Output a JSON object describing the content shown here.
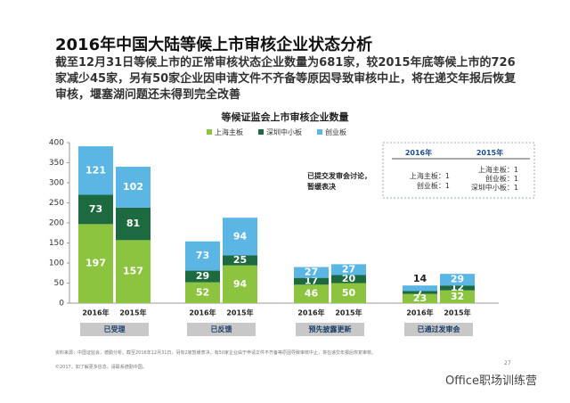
{
  "title": "2016年中国大陆等候上市审核企业状态分析",
  "subtitle": "截至12月31日等候上市的正常审核状态企业数量为681家，较2015年底等候上市的726家减少45家，另有50家企业因申请文件不齐备等原因导致审核中止，将在递交年报后恢复审核，堰塞湖问题还未得到完全改善",
  "chart_data": {
    "type": "bar",
    "stacked": true,
    "title": "等候证监会上市审核企业数量",
    "categories": [
      "2016年",
      "2015年",
      "2016年",
      "2015年",
      "2016年",
      "2015年",
      "2016年",
      "2015年"
    ],
    "groups": [
      "已受理",
      "已反馈",
      "预先披露更新",
      "已通过发审会"
    ],
    "series": [
      {
        "name": "上海主板",
        "color": "#8cc43f",
        "values": [
          197,
          157,
          52,
          94,
          46,
          50,
          23,
          32
        ]
      },
      {
        "name": "深圳中小板",
        "color": "#1e6a40",
        "values": [
          73,
          81,
          29,
          25,
          17,
          20,
          7,
          12
        ]
      },
      {
        "name": "创业板",
        "color": "#5cb6e4",
        "values": [
          121,
          102,
          73,
          94,
          27,
          27,
          14,
          29
        ]
      }
    ],
    "ylim": [
      0,
      400
    ],
    "yticks": [
      0,
      50,
      100,
      150,
      200,
      250,
      300,
      350,
      400
    ],
    "grid": false,
    "legend": "top"
  },
  "side_table": {
    "headers": [
      "2016年",
      "2015年"
    ],
    "row_label": "已提交发审会讨论，暂缓表决",
    "col_2016": [
      "上海主板：1",
      "创业板：1"
    ],
    "col_2015": [
      "上海主板：1",
      "创业板：1",
      "深圳中小板：1"
    ]
  },
  "footer": {
    "source": "资料来源：中国证监会，德勤分析。截至2016年12月31日，另有2家暂缓表决，有50家企业由于申请文件不齐备等原因导致审核中止，将在递交年报后恢复审核。",
    "copyright": "©2017。如了解更多信息，请联系德勤中国。",
    "page": "27",
    "watermark": "Office职场训练营"
  }
}
